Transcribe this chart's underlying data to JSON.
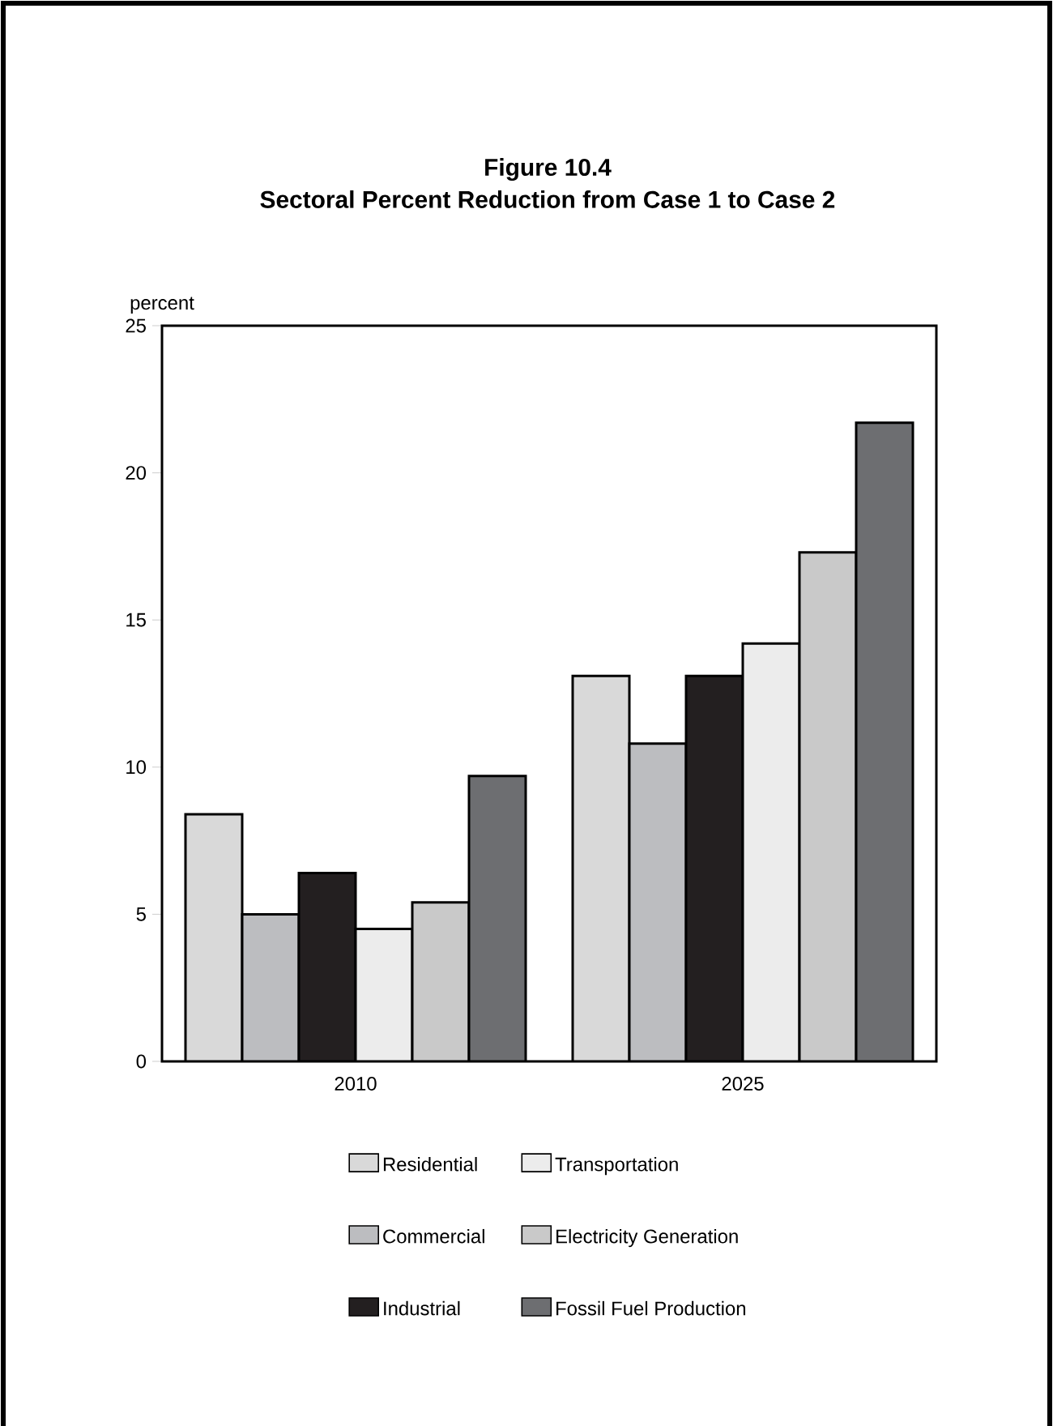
{
  "chart_data": {
    "type": "bar",
    "title": "Figure 10.4\nSectoral Percent Reduction from Case 1 to Case 2",
    "ylabel": "percent",
    "categories": [
      "2010",
      "2025"
    ],
    "series": [
      {
        "name": "Residential",
        "color": "#d9d9d9",
        "values": [
          8.4,
          13.1
        ]
      },
      {
        "name": "Commercial",
        "color": "#bcbdc0",
        "values": [
          5.0,
          10.8
        ]
      },
      {
        "name": "Industrial",
        "color": "#231f20",
        "values": [
          6.4,
          13.1
        ]
      },
      {
        "name": "Transportation",
        "color": "#ececec",
        "values": [
          4.5,
          14.2
        ]
      },
      {
        "name": "Electricity Generation",
        "color": "#c9c9c9",
        "values": [
          5.4,
          17.3
        ]
      },
      {
        "name": "Fossil Fuel Production",
        "color": "#6d6e71",
        "values": [
          9.7,
          21.7
        ]
      }
    ],
    "ylim": [
      0,
      25
    ],
    "yticks": [
      0,
      5,
      10,
      15,
      20,
      25
    ],
    "grid": false,
    "legend": "bottom"
  }
}
